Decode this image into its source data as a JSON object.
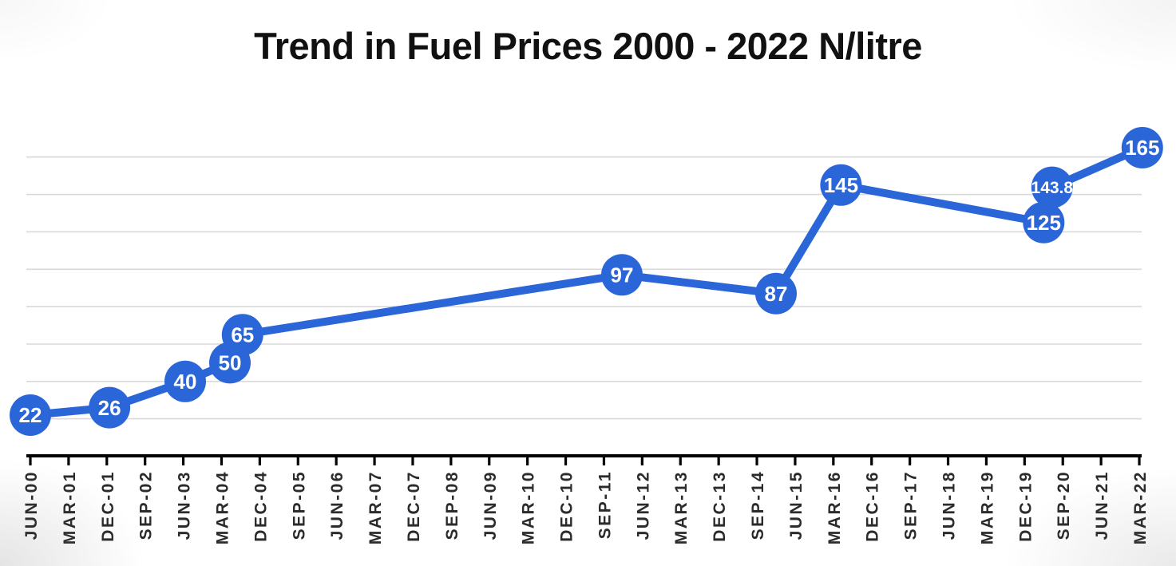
{
  "chart_data": {
    "type": "line",
    "title": "Trend in Fuel Prices 2000 - 2022 N/litre",
    "x_axis": {
      "tick_labels": [
        "JUN-00",
        "MAR-01",
        "DEC-01",
        "SEP-02",
        "JUN-03",
        "MAR-04",
        "DEC-04",
        "SEP-05",
        "JUN-06",
        "MAR-07",
        "DEC-07",
        "SEP-08",
        "JUN-09",
        "MAR-10",
        "DEC-10",
        "SEP-11",
        "JUN-12",
        "MAR-13",
        "DEC-13",
        "SEP-14",
        "JUN-15",
        "MAR-16",
        "DEC-16",
        "SEP-17",
        "JUN-18",
        "MAR-19",
        "DEC-19",
        "SEP-20",
        "JUN-21",
        "MAR-22"
      ]
    },
    "y_axis": {
      "min": 0,
      "max": 180,
      "gridline_interval": 20,
      "tick_labels_visible": false
    },
    "grid": "horizontal",
    "legend": "none",
    "series": [
      {
        "name": "Fuel price (N/litre)",
        "points": [
          {
            "x_tick": 0.0,
            "value": 22,
            "label": "22"
          },
          {
            "x_tick": 2.07,
            "value": 26,
            "label": "26"
          },
          {
            "x_tick": 4.05,
            "value": 40,
            "label": "40"
          },
          {
            "x_tick": 5.22,
            "value": 50,
            "label": "50"
          },
          {
            "x_tick": 5.55,
            "value": 65,
            "label": "65"
          },
          {
            "x_tick": 15.47,
            "value": 97,
            "label": "97"
          },
          {
            "x_tick": 19.5,
            "value": 87,
            "label": "87"
          },
          {
            "x_tick": 21.2,
            "value": 145,
            "label": "145"
          },
          {
            "x_tick": 26.5,
            "value": 125,
            "label": "125"
          },
          {
            "x_tick": 26.72,
            "value": 143.8,
            "label": "143.8"
          },
          {
            "x_tick": 29.08,
            "value": 165,
            "label": "165"
          }
        ]
      }
    ]
  },
  "colors": {
    "line": "#2b66d9",
    "marker_fill": "#2b66d9",
    "marker_text": "#ffffff",
    "gridline": "#d9d9d9",
    "axis": "#000000",
    "tick_label": "#2b2b2b",
    "title_text": "#111111"
  }
}
